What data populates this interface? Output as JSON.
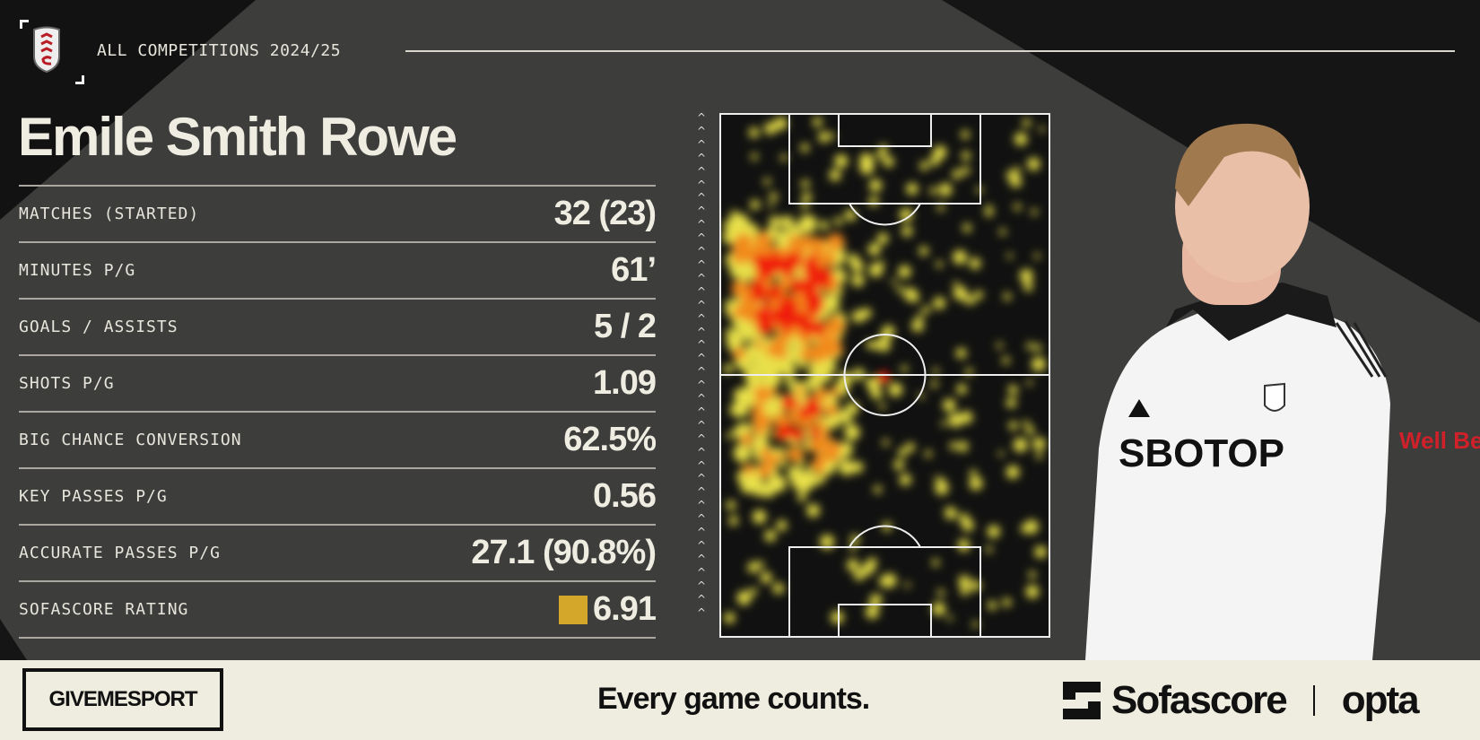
{
  "header": {
    "competition": "ALL COMPETITIONS 2024/25",
    "club_crest": "fulham-crest"
  },
  "player": {
    "name": "Emile Smith Rowe"
  },
  "stats": [
    {
      "label": "MATCHES (STARTED)",
      "value": "32 (23)"
    },
    {
      "label": "MINUTES P/G",
      "value": "61’"
    },
    {
      "label": "GOALS / ASSISTS",
      "value": "5 / 2"
    },
    {
      "label": "SHOTS P/G",
      "value": "1.09"
    },
    {
      "label": "BIG CHANCE CONVERSION",
      "value": "62.5%"
    },
    {
      "label": "KEY PASSES P/G",
      "value": "0.56"
    },
    {
      "label": "ACCURATE PASSES P/G",
      "value": "27.1 (90.8%)"
    },
    {
      "label": "SOFASCORE RATING",
      "value": "6.91",
      "rating_color": "#d4a62a"
    }
  ],
  "heatmap": {
    "attack_direction": "up",
    "colors": {
      "low": "#e8e04a",
      "mid": "#f28a1a",
      "high": "#f01a10"
    }
  },
  "footer": {
    "brand": "GIVEMESPORT",
    "tagline": "Every game counts.",
    "partner1": "Sofascore",
    "partner2": "opta"
  },
  "photo": {
    "shirt_sponsor": "SBOTOP",
    "sleeve_sponsor": "Well Bed"
  }
}
